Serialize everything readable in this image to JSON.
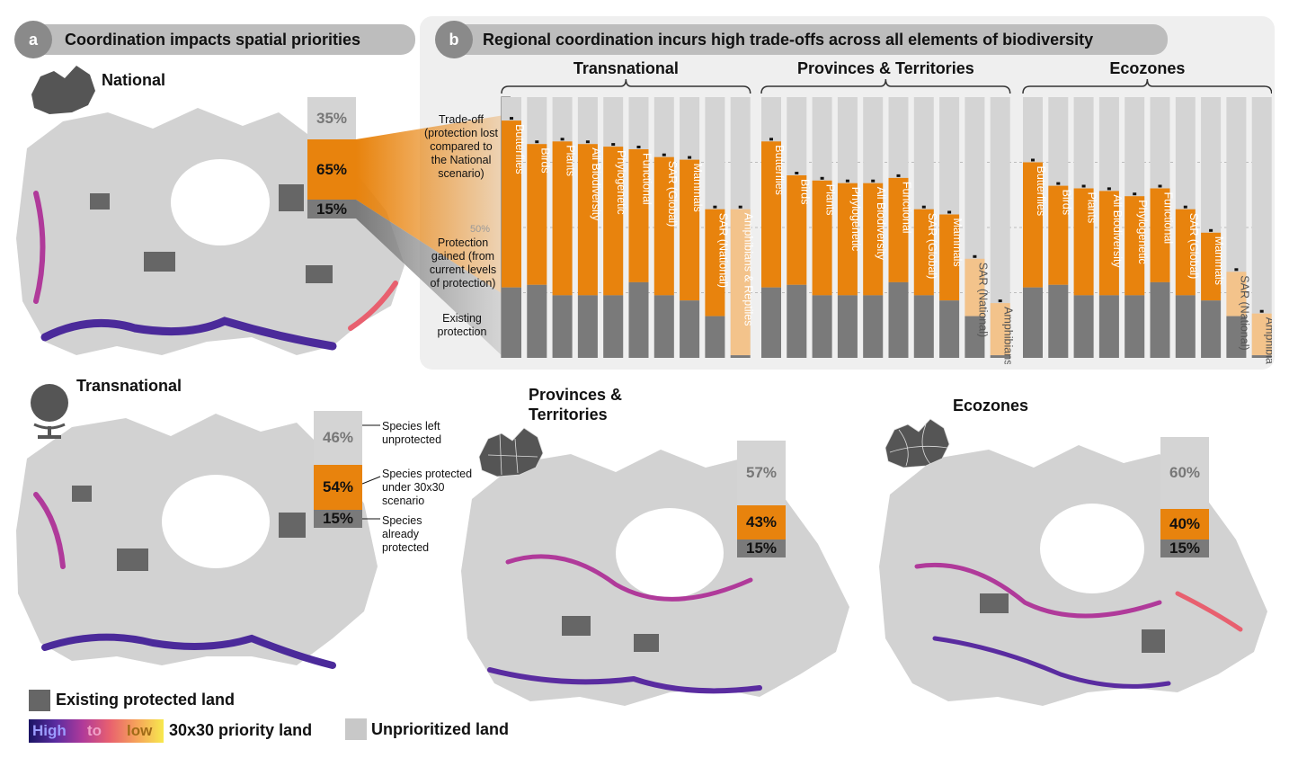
{
  "panel_a": {
    "badge": "a",
    "title": "Coordination impacts spatial priorities",
    "maps": [
      {
        "name": "National",
        "left": "35%",
        "protected": "65%",
        "existing": "15%"
      },
      {
        "name": "Transnational",
        "left": "46%",
        "protected": "54%",
        "existing": "15%"
      },
      {
        "name": "Provinces & Territories",
        "left": "57%",
        "protected": "43%",
        "existing": "15%"
      },
      {
        "name": "Ecozones",
        "left": "60%",
        "protected": "40%",
        "existing": "15%"
      }
    ],
    "stack_notes": {
      "left": "Species left unprotected",
      "protected": "Species protected under 30x30 scenario",
      "existing": "Species already protected"
    }
  },
  "panel_b": {
    "badge": "b",
    "title": "Regional coordination incurs high trade-offs across all elements of biodiversity",
    "annotations": {
      "tradeoff": "Trade-off (protection lost compared to the National scenario)",
      "gained": "Protection gained (from current levels of protection)",
      "existing": "Existing protection",
      "tick_50": "50%"
    }
  },
  "legend": {
    "existing_protected": "Existing protected land",
    "high": "High",
    "to": "to",
    "low": "low",
    "priority": "30x30 priority land",
    "unprioritized": "Unprioritized land"
  },
  "colors": {
    "orange": "#e8830d",
    "light_orange": "#f3c38b",
    "existing_gray": "#7a7a7a",
    "tradeoff_gray": "#d4d4d4",
    "map_gray": "#d2d2d2",
    "protected_dark": "#666666"
  },
  "chart_data": {
    "type": "bar",
    "ylim": [
      0,
      100
    ],
    "groups": [
      {
        "name": "Transnational",
        "categories": [
          "Butterflies",
          "Birds",
          "Plants",
          "All Biodiversity",
          "Phylogenetic",
          "Functional",
          "SAR (Global)",
          "Mammals",
          "SAR (National)",
          "Amphibians & Reptiles"
        ],
        "existing": [
          27,
          28,
          24,
          24,
          24,
          29,
          24,
          22,
          16,
          1
        ],
        "total": [
          91,
          82,
          83,
          82,
          81,
          80,
          77,
          76,
          57,
          57
        ]
      },
      {
        "name": "Provinces & Territories",
        "categories": [
          "Butterflies",
          "Birds",
          "Plants",
          "Phylogenetic",
          "All Biodiversity",
          "Functional",
          "SAR (Global)",
          "Mammals",
          "SAR (National)",
          "Amphibians & Reptiles"
        ],
        "existing": [
          27,
          28,
          24,
          24,
          24,
          29,
          24,
          22,
          16,
          1
        ],
        "total": [
          83,
          70,
          68,
          67,
          67,
          69,
          57,
          55,
          38,
          21
        ]
      },
      {
        "name": "Ecozones",
        "categories": [
          "Butterflies",
          "Birds",
          "Plants",
          "All Biodiversity",
          "Phylogenetic",
          "Functional",
          "SAR (Global)",
          "Mammals",
          "SAR (National)",
          "Amphibians & Reptiles"
        ],
        "existing": [
          27,
          28,
          24,
          24,
          24,
          29,
          24,
          22,
          16,
          1
        ],
        "total": [
          75,
          66,
          65,
          64,
          62,
          65,
          57,
          48,
          33,
          17
        ]
      }
    ]
  }
}
